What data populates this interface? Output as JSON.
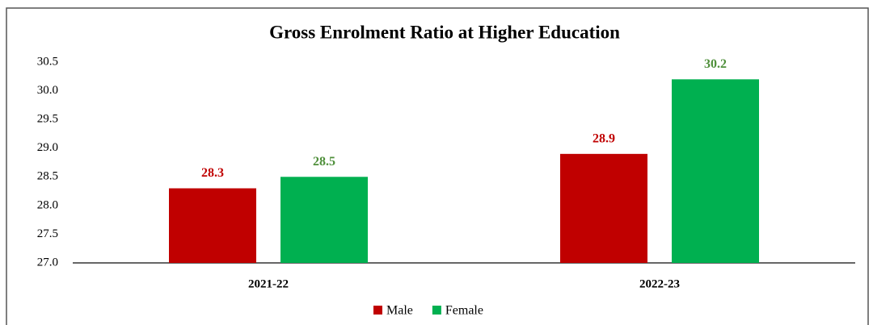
{
  "chart_data": {
    "type": "bar",
    "title": "Gross Enrolment Ratio at Higher Education",
    "categories": [
      "2021-22",
      "2022-23"
    ],
    "series": [
      {
        "name": "Male",
        "color": "#c00000",
        "label_color": "#c00000",
        "values": [
          28.3,
          28.9
        ]
      },
      {
        "name": "Female",
        "color": "#00b050",
        "label_color": "#4e8f3a",
        "values": [
          28.5,
          30.2
        ]
      }
    ],
    "ylim": [
      27.0,
      30.5
    ],
    "yticks": [
      {
        "value": 27.0,
        "label": "27.0"
      },
      27.5,
      {
        "value": 28.0,
        "label": "28.0"
      },
      28.5,
      {
        "value": 29.0,
        "label": "29.0"
      },
      29.5,
      {
        "value": 30.0,
        "label": "30.0"
      },
      30.5
    ],
    "legend": "bottom"
  }
}
